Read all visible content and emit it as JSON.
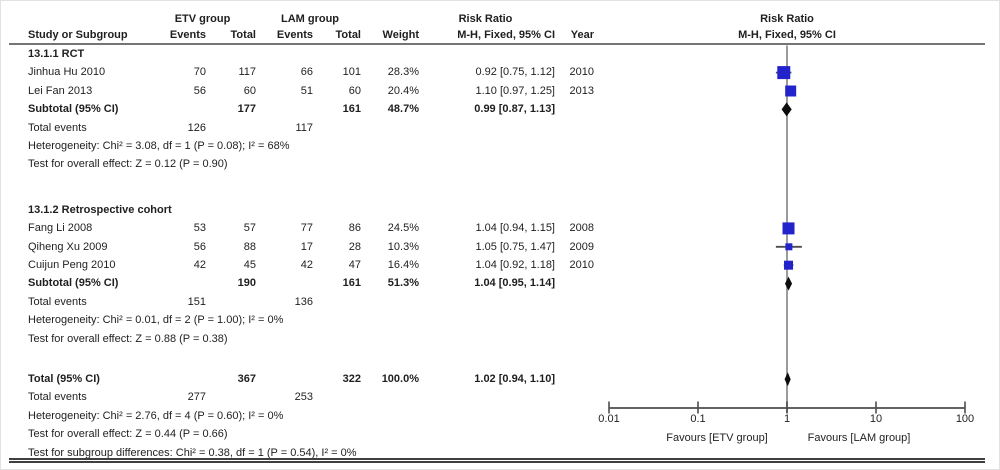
{
  "header": {
    "col_groups": {
      "etv": "ETV group",
      "lam": "LAM group",
      "rr_left": "Risk Ratio",
      "rr_right": "Risk Ratio"
    },
    "cols": {
      "study": "Study or Subgroup",
      "events": "Events",
      "total": "Total",
      "events2": "Events",
      "total2": "Total",
      "weight": "Weight",
      "mh": "M-H, Fixed, 95% CI",
      "year": "Year",
      "mh_right": "M-H, Fixed, 95% CI"
    }
  },
  "chart_data": {
    "type": "forest",
    "x_scale": "log10",
    "x_range": [
      0.01,
      100
    ],
    "x_ticks": [
      "0.01",
      "0.1",
      "1",
      "10",
      "100"
    ],
    "favours_left": "Favours [ETV group]",
    "favours_right": "Favours [LAM group]",
    "effect_measure": "Risk Ratio, M-H, Fixed, 95% CI",
    "groups": [
      {
        "title": "13.1.1 RCT",
        "studies": [
          {
            "name": "Jinhua Hu 2010",
            "events1": "70",
            "total1": "117",
            "events2": "66",
            "total2": "101",
            "weight": "28.3%",
            "weight_pct": 28.3,
            "rr": 0.92,
            "ci_lo": 0.75,
            "ci_hi": 1.12,
            "rr_text": "0.92 [0.75, 1.12]",
            "year": "2010"
          },
          {
            "name": "Lei Fan 2013",
            "events1": "56",
            "total1": "60",
            "events2": "51",
            "total2": "60",
            "weight": "20.4%",
            "weight_pct": 20.4,
            "rr": 1.1,
            "ci_lo": 0.97,
            "ci_hi": 1.25,
            "rr_text": "1.10 [0.97, 1.25]",
            "year": "2013"
          }
        ],
        "subtotal": {
          "label": "Subtotal (95% CI)",
          "total1": "177",
          "total2": "161",
          "weight": "48.7%",
          "rr": 0.99,
          "ci_lo": 0.87,
          "ci_hi": 1.13,
          "rr_text": "0.99 [0.87, 1.13]"
        },
        "total_events": {
          "label": "Total events",
          "v1": "126",
          "v2": "117"
        },
        "heterogeneity": "Heterogeneity: Chi² = 3.08, df = 1 (P = 0.08); I² = 68%",
        "overall_effect": "Test for overall effect: Z = 0.12 (P = 0.90)"
      },
      {
        "title": "13.1.2 Retrospective cohort",
        "studies": [
          {
            "name": "Fang Li 2008",
            "events1": "53",
            "total1": "57",
            "events2": "77",
            "total2": "86",
            "weight": "24.5%",
            "weight_pct": 24.5,
            "rr": 1.04,
            "ci_lo": 0.94,
            "ci_hi": 1.15,
            "rr_text": "1.04 [0.94, 1.15]",
            "year": "2008"
          },
          {
            "name": "Qiheng Xu 2009",
            "events1": "56",
            "total1": "88",
            "events2": "17",
            "total2": "28",
            "weight": "10.3%",
            "weight_pct": 10.3,
            "rr": 1.05,
            "ci_lo": 0.75,
            "ci_hi": 1.47,
            "rr_text": "1.05 [0.75, 1.47]",
            "year": "2009"
          },
          {
            "name": "Cuijun Peng 2010",
            "events1": "42",
            "total1": "45",
            "events2": "42",
            "total2": "47",
            "weight": "16.4%",
            "weight_pct": 16.4,
            "rr": 1.04,
            "ci_lo": 0.92,
            "ci_hi": 1.18,
            "rr_text": "1.04 [0.92, 1.18]",
            "year": "2010"
          }
        ],
        "subtotal": {
          "label": "Subtotal (95% CI)",
          "total1": "190",
          "total2": "161",
          "weight": "51.3%",
          "rr": 1.04,
          "ci_lo": 0.95,
          "ci_hi": 1.14,
          "rr_text": "1.04 [0.95, 1.14]"
        },
        "total_events": {
          "label": "Total events",
          "v1": "151",
          "v2": "136"
        },
        "heterogeneity": "Heterogeneity: Chi² = 0.01, df = 2 (P = 1.00); I² = 0%",
        "overall_effect": "Test for overall effect: Z = 0.88 (P = 0.38)"
      }
    ],
    "total": {
      "label": "Total (95% CI)",
      "total1": "367",
      "total2": "322",
      "weight": "100.0%",
      "rr": 1.02,
      "ci_lo": 0.94,
      "ci_hi": 1.1,
      "rr_text": "1.02 [0.94, 1.10]",
      "total_events": {
        "label": "Total events",
        "v1": "277",
        "v2": "253"
      },
      "heterogeneity": "Heterogeneity: Chi² = 2.76, df = 4 (P = 0.60); I² = 0%",
      "overall_effect": "Test for overall effect: Z = 0.44 (P = 0.66)",
      "subgroup_diff": "Test for subgroup differences: Chi² = 0.38, df = 1 (P = 0.54), I² = 0%"
    },
    "colors": {
      "square": "#2323cc",
      "diamond": "#0d0d0d",
      "ci_line": "#4d4d4d",
      "axis": "#4d4d4d",
      "null_line": "#909090"
    }
  }
}
